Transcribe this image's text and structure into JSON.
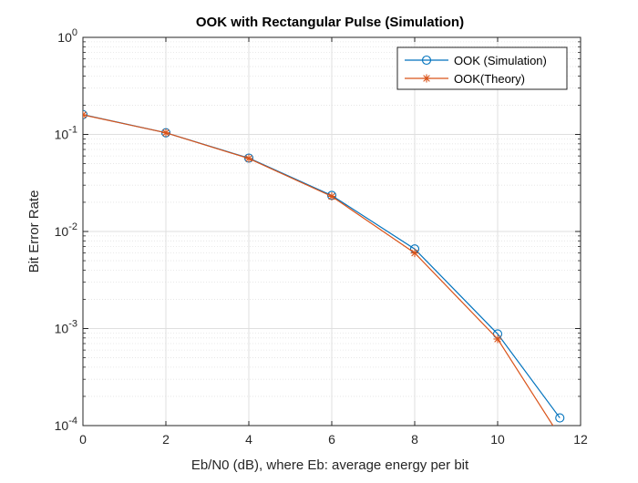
{
  "chart_data": {
    "type": "line",
    "title": "OOK with Rectangular Pulse (Simulation)",
    "xlabel": "Eb/N0 (dB), where Eb: average energy per bit",
    "ylabel": "Bit Error Rate",
    "xlim": [
      0,
      12
    ],
    "ylim": [
      0.0001,
      1
    ],
    "yscale": "log",
    "xticks": [
      0,
      2,
      4,
      6,
      8,
      10,
      12
    ],
    "yticks": [
      {
        "value": 1,
        "base": "10",
        "exp": "0"
      },
      {
        "value": 0.1,
        "base": "10",
        "exp": "-1"
      },
      {
        "value": 0.01,
        "base": "10",
        "exp": "-2"
      },
      {
        "value": 0.001,
        "base": "10",
        "exp": "-3"
      },
      {
        "value": 0.0001,
        "base": "10",
        "exp": "-4"
      }
    ],
    "grid": true,
    "minor_grid": true,
    "legend": "top-right",
    "series": [
      {
        "name": "OOK (Simulation)",
        "marker": "circle",
        "color": "#0072BD",
        "x": [
          0,
          2,
          4,
          6,
          8,
          10,
          11.5
        ],
        "y": [
          0.16,
          0.104,
          0.057,
          0.0235,
          0.0066,
          0.00088,
          0.00012
        ]
      },
      {
        "name": "OOK(Theory)",
        "marker": "asterisk",
        "color": "#D95319",
        "x": [
          0,
          2,
          4,
          6,
          8,
          10,
          11.5
        ],
        "y": [
          0.159,
          0.104,
          0.0565,
          0.023,
          0.006,
          0.00078,
          7.75e-05
        ]
      }
    ]
  }
}
